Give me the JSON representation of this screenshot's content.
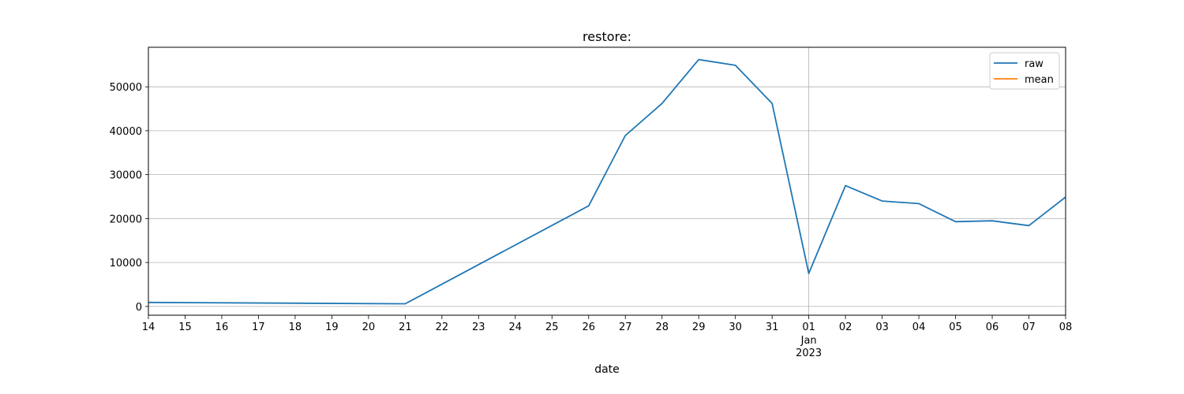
{
  "chart_data": {
    "type": "line",
    "title": "restore:",
    "xlabel": "date",
    "ylabel": "",
    "xlim": [
      "2022-12-14",
      "2023-01-08"
    ],
    "ylim": [
      -2000,
      59000
    ],
    "x_tick_labels": [
      "14",
      "15",
      "16",
      "17",
      "18",
      "19",
      "20",
      "21",
      "22",
      "23",
      "24",
      "25",
      "26",
      "27",
      "28",
      "29",
      "30",
      "31",
      "01",
      "02",
      "03",
      "04",
      "05",
      "06",
      "07",
      "08"
    ],
    "x_major_label": {
      "month": "Jan",
      "year": "2023"
    },
    "y_ticks": [
      0,
      10000,
      20000,
      30000,
      40000,
      50000
    ],
    "y_tick_labels": [
      "0",
      "10000",
      "20000",
      "30000",
      "40000",
      "50000"
    ],
    "grid": "horizontal, plus vertical at 01 Jan 2023",
    "legend_position": "top-right",
    "series": [
      {
        "name": "raw",
        "color": "#1f77b4",
        "x": [
          "2022-12-14",
          "2022-12-21",
          "2022-12-26",
          "2022-12-27",
          "2022-12-28",
          "2022-12-29",
          "2022-12-30",
          "2022-12-31",
          "2023-01-01",
          "2023-01-02",
          "2023-01-03",
          "2023-01-04",
          "2023-01-05",
          "2023-01-06",
          "2023-01-07",
          "2023-01-08"
        ],
        "values": [
          900,
          600,
          22900,
          38900,
          46200,
          56200,
          54900,
          46200,
          7500,
          27500,
          24000,
          23400,
          19300,
          19500,
          18400,
          24900
        ]
      },
      {
        "name": "mean",
        "color": "#ff7f0e",
        "x": [],
        "values": []
      }
    ]
  }
}
